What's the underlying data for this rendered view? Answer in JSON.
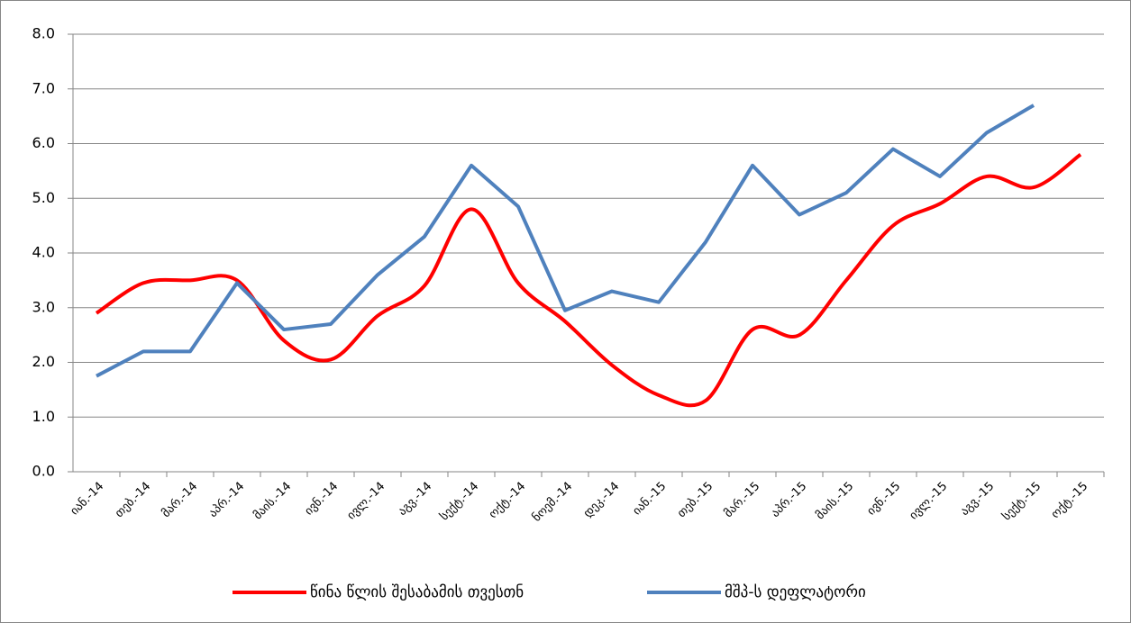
{
  "chart_data": {
    "type": "line",
    "categories": [
      "იან.-14",
      "თებ.-14",
      "მარ.-14",
      "აპრ.-14",
      "მაის.-14",
      "ივნ.-14",
      "ივლ.-14",
      "აგვ.-14",
      "სექტ.-14",
      "ოქტ.-14",
      "ნოემ.-14",
      "დეკ.-14",
      "იან.-15",
      "თებ.-15",
      "მარ.-15",
      "აპრ.-15",
      "მაის.-15",
      "ივნ.-15",
      "ივლ.-15",
      "აგვ.-15",
      "სექტ.-15",
      "ოქტ.-15"
    ],
    "series": [
      {
        "name": "წინა წლის შესაბამის თვესთნ",
        "color": "#ff0000",
        "smooth": true,
        "values": [
          2.9,
          3.45,
          3.5,
          3.5,
          2.4,
          2.05,
          2.85,
          3.4,
          4.8,
          3.45,
          2.75,
          1.95,
          1.4,
          1.3,
          2.6,
          2.5,
          3.5,
          4.5,
          4.9,
          5.4,
          5.2,
          5.8
        ]
      },
      {
        "name": "მშპ-ს დეფლატორი",
        "color": "#4f81bd",
        "smooth": false,
        "values": [
          1.75,
          2.2,
          2.2,
          3.45,
          2.6,
          2.7,
          3.6,
          4.3,
          5.6,
          4.85,
          2.95,
          3.3,
          3.1,
          4.2,
          5.6,
          4.7,
          5.1,
          5.9,
          5.4,
          6.2,
          6.7,
          null
        ]
      }
    ],
    "ylim": [
      0,
      8
    ],
    "yticks": [
      {
        "value": 0,
        "label": "0.0"
      },
      {
        "value": 1,
        "label": "1.0"
      },
      {
        "value": 2,
        "label": "2.0"
      },
      {
        "value": 3,
        "label": "3.0"
      },
      {
        "value": 4,
        "label": "4.0"
      },
      {
        "value": 5,
        "label": "5.0"
      },
      {
        "value": 6,
        "label": "6.0"
      },
      {
        "value": 7,
        "label": "7.0"
      },
      {
        "value": 8,
        "label": "8.0"
      }
    ],
    "grid": true,
    "legend": "bottom"
  }
}
